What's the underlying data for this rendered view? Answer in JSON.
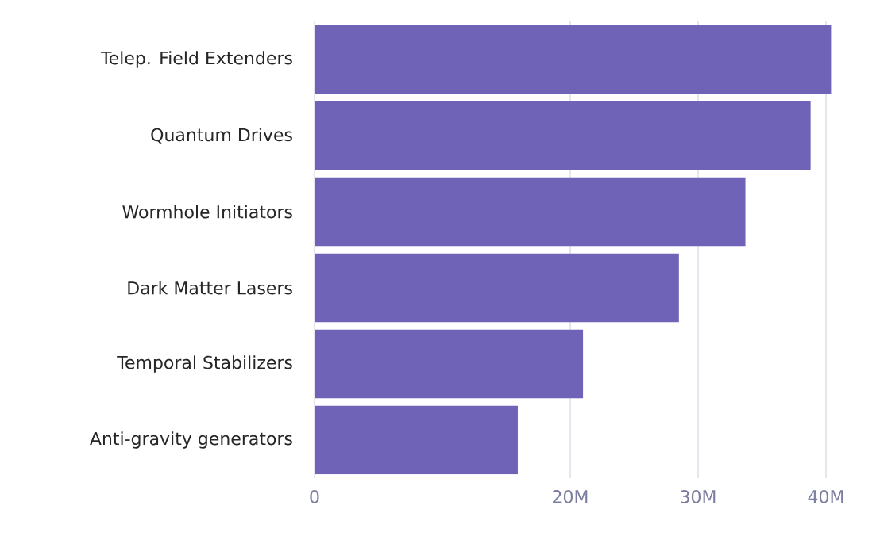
{
  "chart_data": {
    "type": "bar",
    "orientation": "horizontal",
    "categories": [
      "Telep. Field Extenders",
      "Quantum Drives",
      "Wormhole Initiators",
      "Dark Matter Lasers",
      "Temporal Stabilizers",
      "Anti-gravity generators"
    ],
    "values": [
      40.4,
      38.8,
      33.7,
      28.5,
      21,
      15.9
    ],
    "color": "#6f63b7",
    "xlim": [
      0,
      40.5
    ],
    "xticks": [
      0,
      {
        "value": 20,
        "label": "20M"
      },
      {
        "value": 30,
        "label": "30M"
      },
      {
        "value": 40,
        "label": "40M"
      }
    ],
    "grid": "x"
  }
}
